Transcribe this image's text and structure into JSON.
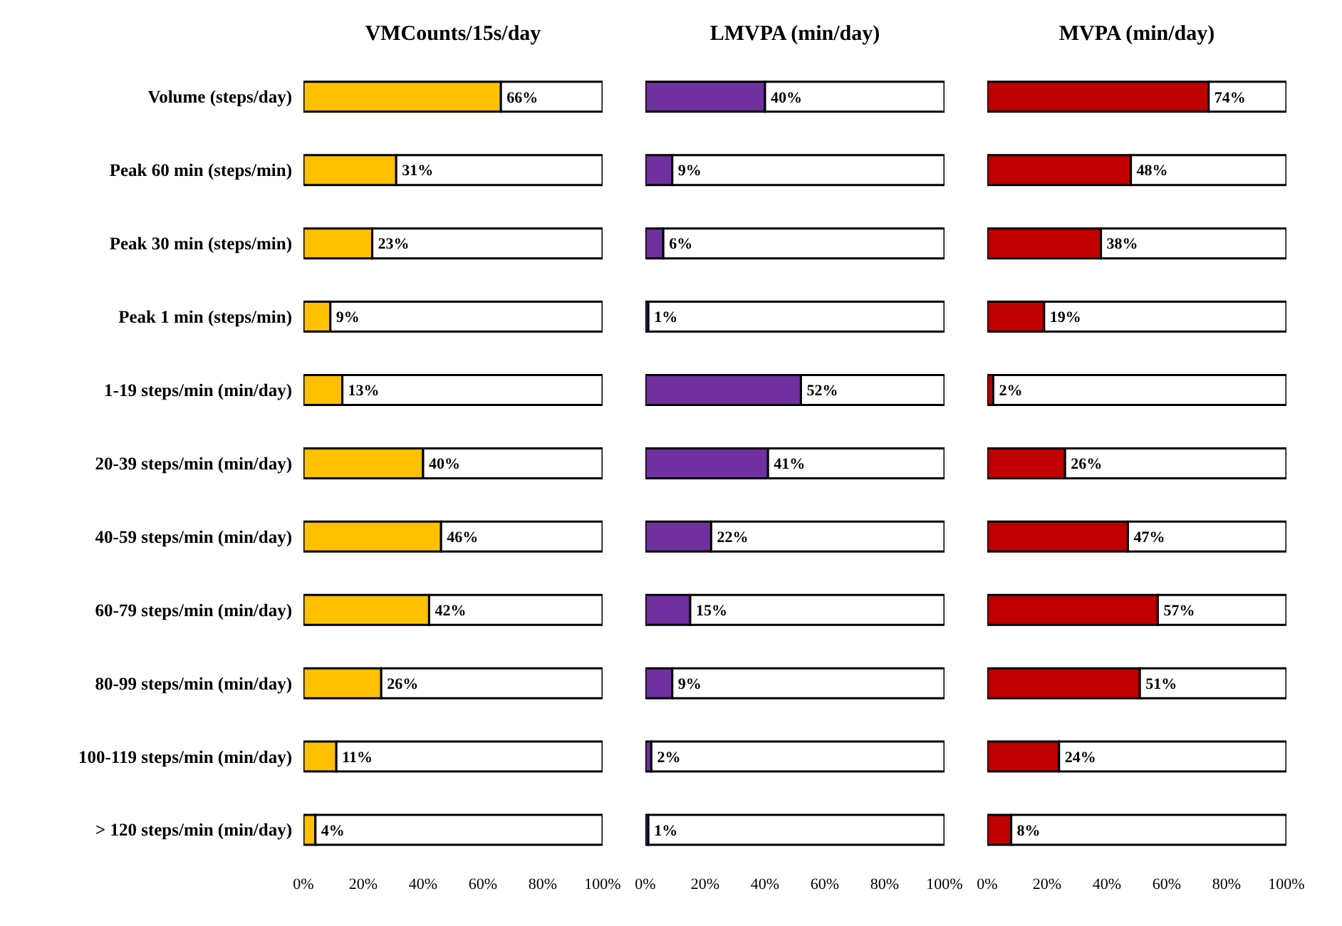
{
  "chart_data": [
    {
      "type": "bar",
      "title": "VMCounts/15s/day",
      "orientation": "horizontal",
      "stacked": true,
      "tick_labels": "xy",
      "categories": [
        "Volume (steps/day)",
        "Peak 60 min (steps/min)",
        "Peak 30 min (steps/min)",
        "Peak 1 min (steps/min)",
        "1-19 steps/min (min/day)",
        "20-39 steps/min (min/day)",
        "40-59 steps/min (min/day)",
        "60-79 steps/min (min/day)",
        "80-99 steps/min (min/day)",
        "100-119 steps/min (min/day)",
        "> 120 steps/min (min/day)"
      ],
      "series": [
        {
          "color": "#ffc000",
          "values": [
            66,
            31,
            23,
            9,
            13,
            40,
            46,
            42,
            26,
            11,
            4
          ],
          "value_labels": [
            "66%",
            "31%",
            "23%",
            "9%",
            "13%",
            "40%",
            "46%",
            "42%",
            "26%",
            "11%",
            "4%"
          ]
        },
        {
          "color": "#ffffff",
          "values": [
            34,
            69,
            77,
            91,
            87,
            60,
            54,
            58,
            74,
            89,
            96
          ]
        }
      ],
      "xlim": [
        0,
        100
      ],
      "xticks": [
        {
          "value": 0,
          "label": "0%"
        },
        {
          "value": 20,
          "label": "20%"
        },
        {
          "value": 40,
          "label": "40%"
        },
        {
          "value": 60,
          "label": "60%"
        },
        {
          "value": 80,
          "label": "80%"
        },
        {
          "value": 100,
          "label": "100%"
        }
      ]
    },
    {
      "type": "bar",
      "title": "LMVPA (min/day)",
      "orientation": "horizontal",
      "stacked": true,
      "tick_labels": "x",
      "categories": [
        null,
        null,
        null,
        null,
        null,
        null,
        null,
        null,
        null,
        null,
        null
      ],
      "series": [
        {
          "color": "#7030a0",
          "values": [
            40,
            9,
            6,
            1,
            52,
            41,
            22,
            15,
            9,
            2,
            1
          ],
          "value_labels": [
            "40%",
            "9%",
            "6%",
            "1%",
            "52%",
            "41%",
            "22%",
            "15%",
            "9%",
            "2%",
            "1%"
          ]
        },
        {
          "color": "#ffffff",
          "values": [
            60,
            91,
            94,
            99,
            48,
            59,
            78,
            85,
            91,
            98,
            99
          ]
        }
      ],
      "xlim": [
        0,
        100
      ],
      "xticks": [
        {
          "value": 0,
          "label": "0%"
        },
        {
          "value": 20,
          "label": "20%"
        },
        {
          "value": 40,
          "label": "40%"
        },
        {
          "value": 60,
          "label": "60%"
        },
        {
          "value": 80,
          "label": "80%"
        },
        {
          "value": 100,
          "label": "100%"
        }
      ]
    },
    {
      "type": "bar",
      "title": "MVPA (min/day)",
      "orientation": "horizontal",
      "stacked": true,
      "tick_labels": "x",
      "categories": [
        null,
        null,
        null,
        null,
        null,
        null,
        null,
        null,
        null,
        null,
        null
      ],
      "series": [
        {
          "color": "#c00000",
          "values": [
            74,
            48,
            38,
            19,
            2,
            26,
            47,
            57,
            51,
            24,
            8
          ],
          "value_labels": [
            "74%",
            "48%",
            "38%",
            "19%",
            "2%",
            "26%",
            "47%",
            "57%",
            "51%",
            "24%",
            "8%"
          ]
        },
        {
          "color": "#ffffff",
          "values": [
            26,
            52,
            62,
            81,
            98,
            74,
            53,
            43,
            49,
            76,
            92
          ]
        }
      ],
      "xlim": [
        0,
        100
      ],
      "xticks": [
        {
          "value": 0,
          "label": "0%"
        },
        {
          "value": 20,
          "label": "20%"
        },
        {
          "value": 40,
          "label": "40%"
        },
        {
          "value": 60,
          "label": "60%"
        },
        {
          "value": 80,
          "label": "80%"
        },
        {
          "value": 100,
          "label": "100%"
        }
      ]
    }
  ]
}
